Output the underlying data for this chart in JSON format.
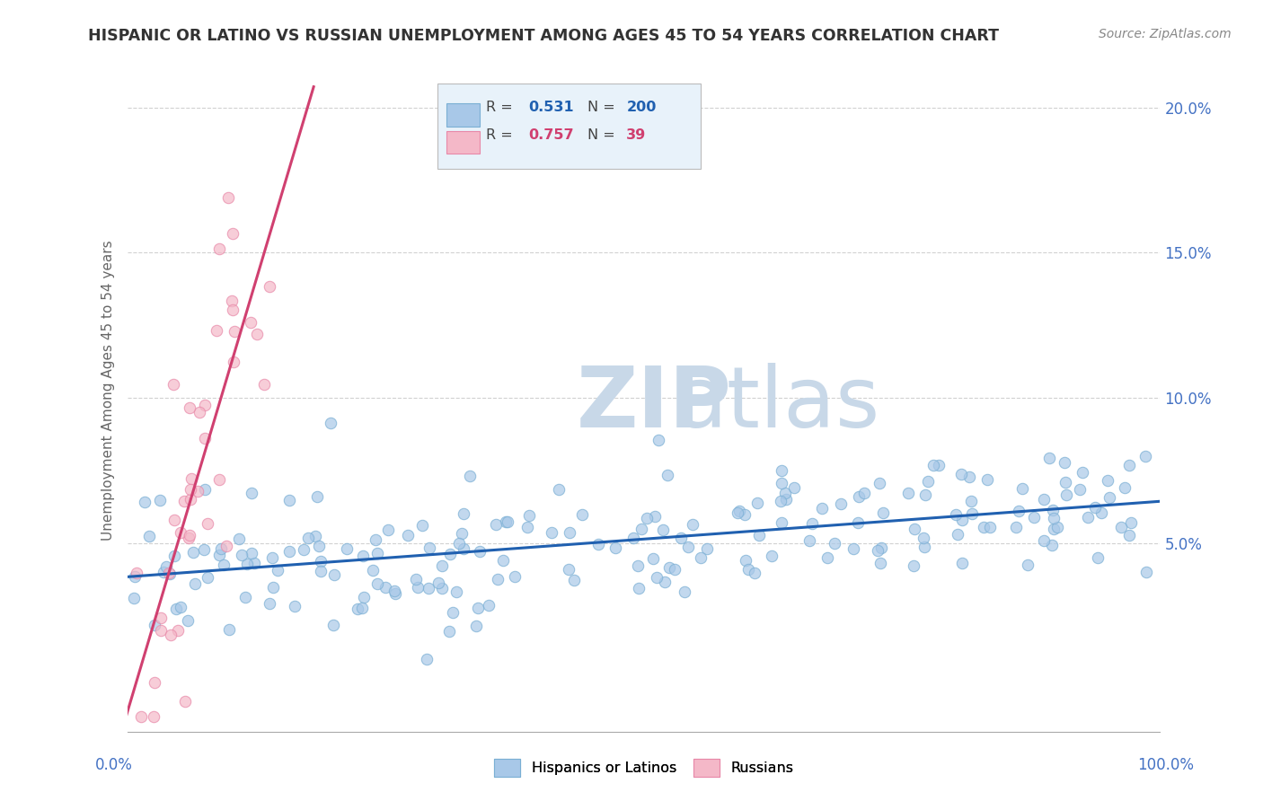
{
  "title": "HISPANIC OR LATINO VS RUSSIAN UNEMPLOYMENT AMONG AGES 45 TO 54 YEARS CORRELATION CHART",
  "source": "Source: ZipAtlas.com",
  "ylabel": "Unemployment Among Ages 45 to 54 years",
  "xlim": [
    0,
    1.0
  ],
  "ylim": [
    -0.015,
    0.22
  ],
  "yticks": [
    0.05,
    0.1,
    0.15,
    0.2
  ],
  "ytick_labels": [
    "5.0%",
    "10.0%",
    "15.0%",
    "20.0%"
  ],
  "hispanic_R": 0.531,
  "hispanic_N": 200,
  "russian_R": 0.757,
  "russian_N": 39,
  "hispanic_color": "#a8c8e8",
  "russian_color": "#f4b8c8",
  "hispanic_edge_color": "#7aafd4",
  "russian_edge_color": "#e888a8",
  "hispanic_line_color": "#2060b0",
  "russian_line_color": "#d04070",
  "watermark_zip": "ZIP",
  "watermark_atlas": "atlas",
  "watermark_color": "#c8d8e8",
  "background_color": "#ffffff",
  "grid_color": "#cccccc",
  "title_color": "#333333",
  "axis_label_color": "#4472c4",
  "legend_box_color": "#e8f2fa",
  "legend_box_edge": "#bbbbbb",
  "hispanic_seed": 42,
  "russian_seed": 123
}
